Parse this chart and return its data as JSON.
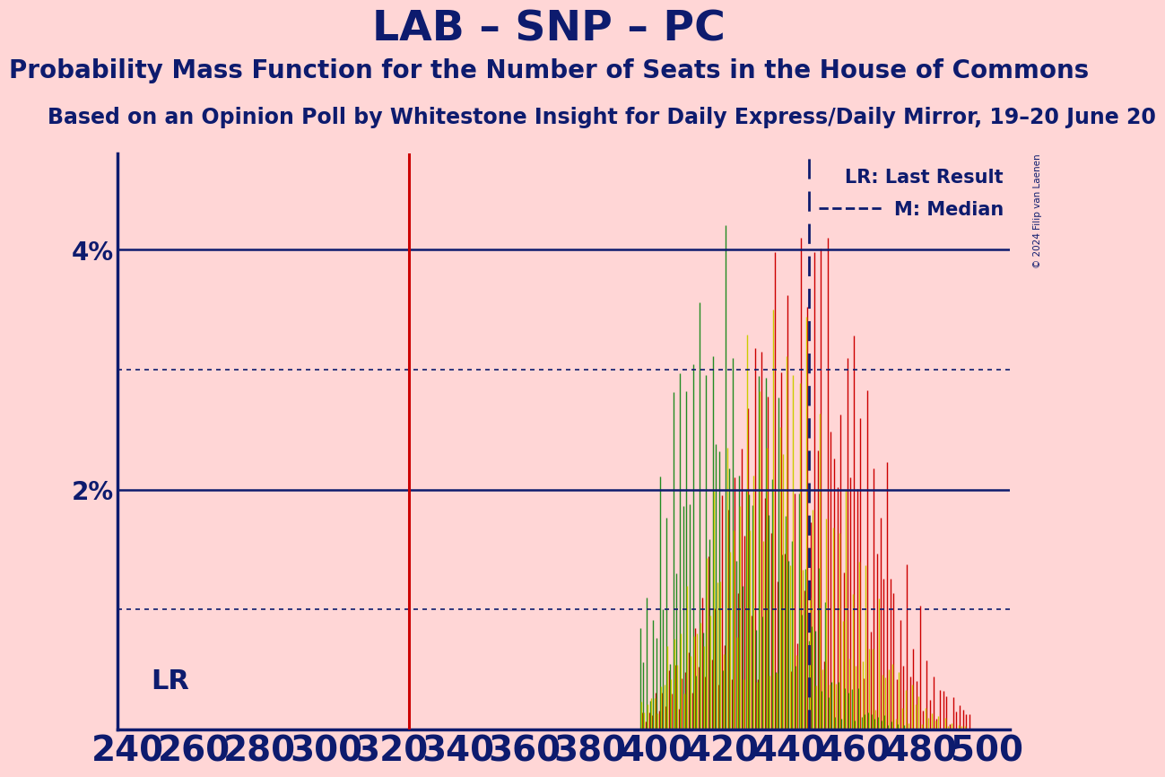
{
  "title": "LAB – SNP – PC",
  "subtitle": "Probability Mass Function for the Number of Seats in the House of Commons",
  "subtitle2": "Based on an Opinion Poll by Whitestone Insight for Daily Express/Daily Mirror, 19–20 June 20",
  "copyright": "© 2024 Filip van Laenen",
  "background_color": "#FFD6D6",
  "text_color": "#0D1B6E",
  "title_fontsize": 34,
  "subtitle_fontsize": 20,
  "subtitle2_fontsize": 17,
  "tick_fontsize": 28,
  "ytick_fontsize": 20,
  "lr_label": "LR",
  "lr_x": 325,
  "lr_color": "#CC0000",
  "median_x": 446,
  "xmin": 237,
  "xmax": 507,
  "ymin": 0.0,
  "ymax": 0.048,
  "yticks": [
    0.0,
    0.01,
    0.02,
    0.03,
    0.04
  ],
  "ytick_labels": [
    "",
    "",
    "2%",
    "",
    "4%"
  ],
  "xticks": [
    240,
    260,
    280,
    300,
    320,
    340,
    360,
    380,
    400,
    420,
    440,
    460,
    480,
    500
  ],
  "solid_hlines": [
    0.02,
    0.04
  ],
  "dotted_hlines": [
    0.01,
    0.03
  ],
  "red_color": "#CC0000",
  "green_color": "#228B22",
  "yellow_color": "#CCCC00",
  "legend_lr": "LR: Last Result",
  "legend_m": "M: Median"
}
